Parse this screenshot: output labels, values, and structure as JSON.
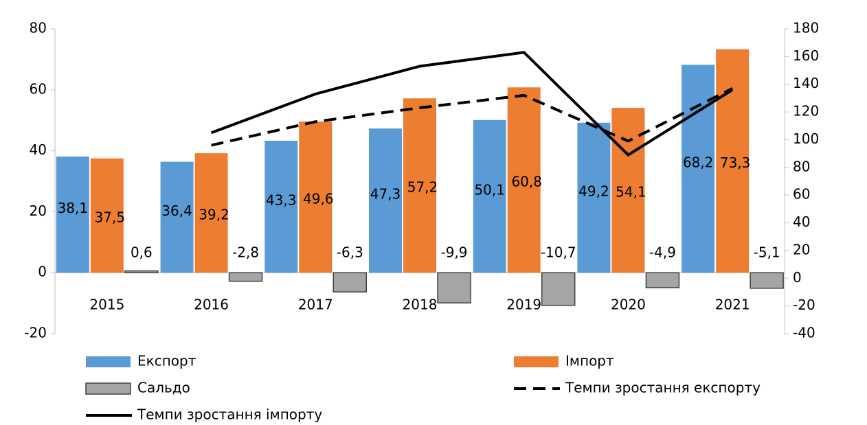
{
  "chart_data": {
    "type": "bar",
    "categories": [
      "2015",
      "2016",
      "2017",
      "2018",
      "2019",
      "2020",
      "2021"
    ],
    "series": [
      {
        "name": "Експорт",
        "color": "#5b9bd5",
        "type": "bar",
        "values": [
          38.1,
          36.4,
          43.3,
          47.3,
          50.1,
          49.2,
          68.2
        ],
        "value_labels": [
          "38,1",
          "36,4",
          "43,3",
          "47,3",
          "50,1",
          "49,2",
          "68,2"
        ]
      },
      {
        "name": "Імпорт",
        "color": "#ed7d31",
        "type": "bar",
        "values": [
          37.5,
          39.2,
          49.6,
          57.2,
          60.8,
          54.1,
          73.3
        ],
        "value_labels": [
          "37,5",
          "39,2",
          "49,6",
          "57,2",
          "60,8",
          "54,1",
          "73,3"
        ]
      },
      {
        "name": "Сальдо",
        "color": "#a5a5a5",
        "type": "bar",
        "values": [
          0.6,
          -2.8,
          -6.3,
          -9.9,
          -10.7,
          -4.9,
          -5.1
        ],
        "value_labels": [
          "0,6",
          "-2,8",
          "-6,3",
          "-9,9",
          "-10,7",
          "-4,9",
          "-5,1"
        ]
      },
      {
        "name": "Темпи зростання експорту",
        "color": "#000000",
        "type": "line",
        "line_style": "dashed",
        "axis": "y2",
        "values": [
          null,
          96,
          113,
          123,
          132,
          99,
          137
        ]
      },
      {
        "name": "Темпи зростання імпорту",
        "color": "#000000",
        "type": "line",
        "line_style": "solid",
        "axis": "y2",
        "values": [
          null,
          105,
          133,
          153,
          163,
          89,
          136
        ]
      }
    ],
    "ylim": [
      -20,
      80
    ],
    "yticks": [
      -20,
      0,
      20,
      40,
      60,
      80
    ],
    "y2lim": [
      -40,
      180
    ],
    "y2ticks": [
      -40,
      -20,
      0,
      20,
      40,
      60,
      80,
      100,
      120,
      140,
      160,
      180
    ],
    "legend": "bottom"
  }
}
